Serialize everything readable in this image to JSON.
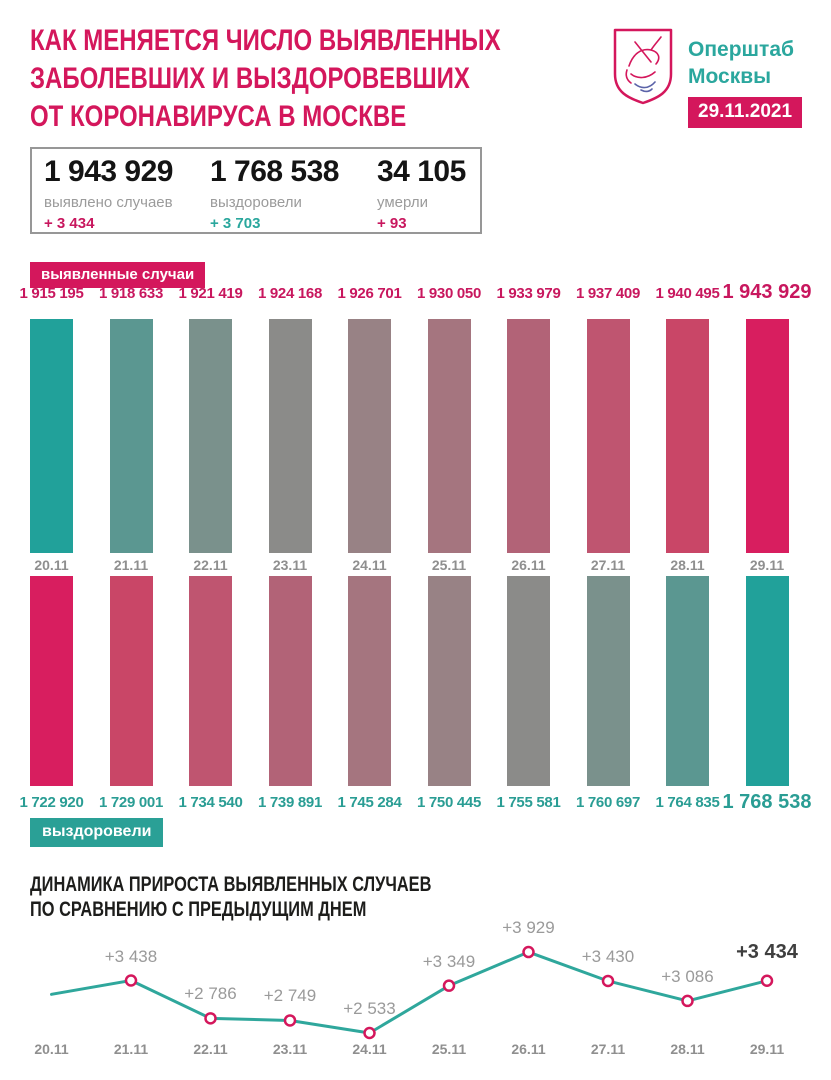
{
  "header": {
    "title_lines": [
      "КАК МЕНЯЕТСЯ ЧИСЛО ВЫЯВЛЕННЫХ",
      "ЗАБОЛЕВШИХ И ВЫЗДОРОВЕВШИХ",
      "ОТ КОРОНАВИРУСА В МОСКВЕ"
    ],
    "org_name_lines": [
      "Оперштаб",
      "Москвы"
    ],
    "date_badge": "29.11.2021",
    "logo": "moscow-coat-of-arms"
  },
  "summary": {
    "stats": [
      {
        "value": "1 943 929",
        "label": "выявлено случаев",
        "delta": "+ 3 434",
        "delta_color": "#c8175e"
      },
      {
        "value": "1 768 538",
        "label": "выздоровели",
        "delta": "+ 3 703",
        "delta_color": "#2aa79d"
      },
      {
        "value": "34 105",
        "label": "умерли",
        "delta": "+ 93",
        "delta_color": "#c8175e"
      }
    ]
  },
  "colors": {
    "accent_pink": "#d4175c",
    "accent_teal": "#2aa096",
    "org_teal": "#2ba79e",
    "gray_text": "#8f8f8f"
  },
  "chart_data": [
    {
      "type": "bar",
      "name": "cases",
      "title": "выявленные случаи",
      "categories": [
        "20.11",
        "21.11",
        "22.11",
        "23.11",
        "24.11",
        "25.11",
        "26.11",
        "27.11",
        "28.11",
        "29.11"
      ],
      "values": [
        1915195,
        1918633,
        1921419,
        1924168,
        1926701,
        1930050,
        1933979,
        1937409,
        1940495,
        1943929
      ],
      "value_labels": [
        "1 915 195",
        "1 918 633",
        "1 921 419",
        "1 924 168",
        "1 926 701",
        "1 930 050",
        "1 933 979",
        "1 937 409",
        "1 940 495",
        "1 943 929"
      ],
      "bar_colors": [
        "#21a19a",
        "#5b9791",
        "#7a918c",
        "#8b8b89",
        "#988285",
        "#a5757f",
        "#b26377",
        "#bf5570",
        "#c94667",
        "#d81e5f"
      ],
      "label_color": "#c8175e",
      "layout_note": "bars drawn equal height, values labeled above bars, last label enlarged"
    },
    {
      "type": "bar",
      "name": "recovered",
      "title": "выздоровели",
      "categories": [
        "20.11",
        "21.11",
        "22.11",
        "23.11",
        "24.11",
        "25.11",
        "26.11",
        "27.11",
        "28.11",
        "29.11"
      ],
      "values": [
        1722920,
        1729001,
        1734540,
        1739891,
        1745284,
        1750445,
        1755581,
        1760697,
        1764835,
        1768538
      ],
      "value_labels": [
        "1 722 920",
        "1 729 001",
        "1 734 540",
        "1 739 891",
        "1 745 284",
        "1 750 445",
        "1 755 581",
        "1 760 697",
        "1 764 835",
        "1 768 538"
      ],
      "bar_colors": [
        "#d81e5f",
        "#c94667",
        "#bf5570",
        "#b26377",
        "#a5757f",
        "#988285",
        "#8b8b89",
        "#7a918c",
        "#5b9791",
        "#21a19a"
      ],
      "label_color": "#2a9d94",
      "layout_note": "bars drawn equal height, values labeled below bars, last label enlarged"
    },
    {
      "type": "line",
      "name": "daily-growth",
      "title_lines": [
        "ДИНАМИКА ПРИРОСТА ВЫЯВЛЕННЫХ СЛУЧАЕВ",
        "ПО СРАВНЕНИЮ С ПРЕДЫДУЩИМ ДНЕМ"
      ],
      "x": [
        "20.11",
        "21.11",
        "22.11",
        "23.11",
        "24.11",
        "25.11",
        "26.11",
        "27.11",
        "28.11",
        "29.11"
      ],
      "values": [
        3200,
        3438,
        2786,
        2749,
        2533,
        3349,
        3929,
        3430,
        3086,
        3434
      ],
      "point_labels": [
        "",
        "+3 438",
        "+2 786",
        "+2 749",
        "+2 533",
        "+3 349",
        "+3 929",
        "+3 430",
        "+3 086",
        "+3 434"
      ],
      "show_marker": [
        false,
        true,
        true,
        true,
        true,
        true,
        true,
        true,
        true,
        true
      ],
      "first_point_unlabeled_estimate": true,
      "ylim": [
        2300,
        4100
      ],
      "line_color": "#2fa79c",
      "marker_stroke": "#d4175c",
      "marker_fill": "#ffffff",
      "label_color": "#9a9a9a",
      "last_label_emphasized": true,
      "grid": false,
      "legend": "none"
    }
  ]
}
